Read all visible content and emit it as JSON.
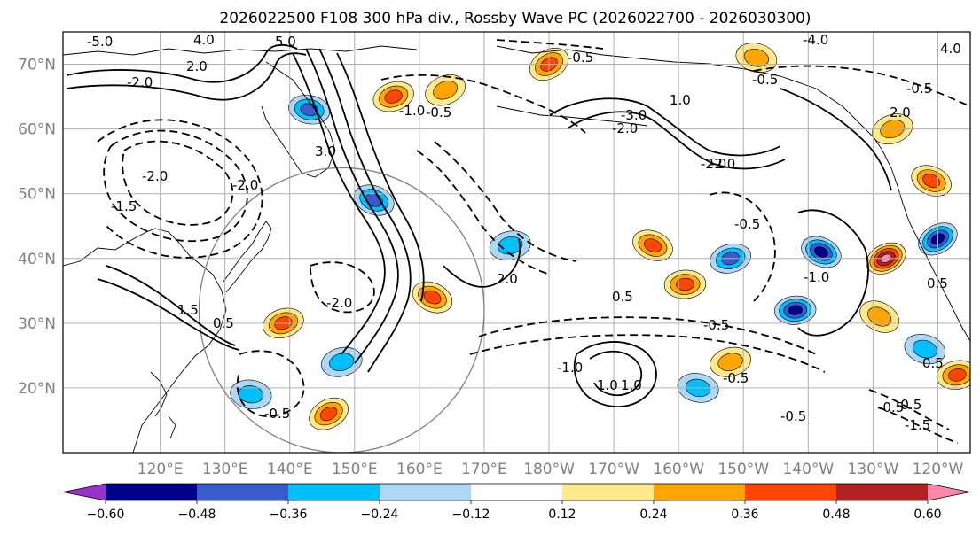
{
  "chart_data": {
    "type": "contour-map",
    "title": "2026022500 F108 300 hPa div., Rossby Wave PC (2026022700 - 2026030300)",
    "projection": "cylindrical",
    "lon_range": [
      105,
      245
    ],
    "lat_range": [
      10,
      75
    ],
    "lat_ticks": [
      {
        "lat": 20,
        "label": "20°N"
      },
      {
        "lat": 30,
        "label": "30°N"
      },
      {
        "lat": 40,
        "label": "40°N"
      },
      {
        "lat": 50,
        "label": "50°N"
      },
      {
        "lat": 60,
        "label": "60°N"
      },
      {
        "lat": 70,
        "label": "70°N"
      }
    ],
    "lon_ticks": [
      {
        "lon": 120,
        "label": "120°E"
      },
      {
        "lon": 130,
        "label": "130°E"
      },
      {
        "lon": 140,
        "label": "140°E"
      },
      {
        "lon": 150,
        "label": "150°E"
      },
      {
        "lon": 160,
        "label": "160°E"
      },
      {
        "lon": 170,
        "label": "170°E"
      },
      {
        "lon": 180,
        "label": "180°W"
      },
      {
        "lon": 190,
        "label": "170°W"
      },
      {
        "lon": 200,
        "label": "160°W"
      },
      {
        "lon": 210,
        "label": "150°W"
      },
      {
        "lon": 220,
        "label": "140°W"
      },
      {
        "lon": 230,
        "label": "130°W"
      },
      {
        "lon": 240,
        "label": "120°W"
      }
    ],
    "colorbar": {
      "boundaries": [
        -0.72,
        -0.6,
        -0.48,
        -0.36,
        -0.24,
        -0.12,
        0.12,
        0.24,
        0.36,
        0.48,
        0.6,
        0.72
      ],
      "tick_values": [
        -0.6,
        -0.48,
        -0.36,
        -0.24,
        -0.12,
        0.12,
        0.24,
        0.36,
        0.48,
        0.6
      ],
      "tick_labels": [
        "−0.60",
        "−0.48",
        "−0.36",
        "−0.24",
        "−0.12",
        "0.12",
        "0.24",
        "0.36",
        "0.48",
        "0.60"
      ],
      "colors": [
        "#9932cc",
        "#00008b",
        "#3a5bcb",
        "#00bfff",
        "#add8f5",
        "#ffffff",
        "#ffe98a",
        "#ffa500",
        "#ff4500",
        "#b22222",
        "#ff88aa"
      ],
      "extend": "both"
    },
    "shaded_field": "300 hPa divergence",
    "divergence_features": [
      {
        "lon": 143,
        "lat": 63,
        "value": -0.4
      },
      {
        "lon": 156,
        "lat": 65,
        "value": 0.36
      },
      {
        "lon": 164,
        "lat": 66,
        "value": 0.3
      },
      {
        "lon": 180,
        "lat": 70,
        "value": 0.38
      },
      {
        "lon": 212,
        "lat": 71,
        "value": 0.3
      },
      {
        "lon": 233,
        "lat": 60,
        "value": 0.32
      },
      {
        "lon": 239,
        "lat": 52,
        "value": 0.42
      },
      {
        "lon": 232,
        "lat": 40,
        "value": 0.66
      },
      {
        "lon": 222,
        "lat": 41,
        "value": -0.5
      },
      {
        "lon": 218,
        "lat": 32,
        "value": -0.55
      },
      {
        "lon": 240,
        "lat": 43,
        "value": -0.48
      },
      {
        "lon": 196,
        "lat": 42,
        "value": 0.4
      },
      {
        "lon": 201,
        "lat": 36,
        "value": 0.45
      },
      {
        "lon": 208,
        "lat": 40,
        "value": -0.36
      },
      {
        "lon": 174,
        "lat": 42,
        "value": -0.3
      },
      {
        "lon": 162,
        "lat": 34,
        "value": 0.46
      },
      {
        "lon": 139,
        "lat": 30,
        "value": 0.4
      },
      {
        "lon": 153,
        "lat": 49,
        "value": -0.36
      },
      {
        "lon": 148,
        "lat": 24,
        "value": -0.28
      },
      {
        "lon": 134,
        "lat": 19,
        "value": -0.3
      },
      {
        "lon": 146,
        "lat": 16,
        "value": 0.36
      },
      {
        "lon": 208,
        "lat": 24,
        "value": 0.3
      },
      {
        "lon": 203,
        "lat": 20,
        "value": -0.28
      },
      {
        "lon": 243,
        "lat": 22,
        "value": 0.38
      },
      {
        "lon": 238,
        "lat": 26,
        "value": -0.3
      },
      {
        "lon": 231,
        "lat": 31,
        "value": 0.3
      }
    ],
    "contour_field": "Rossby Wave PC",
    "contour_label_values": [
      "-5.0",
      "4.0",
      "5.0",
      "-2.0",
      "2.0",
      "-1.0",
      "3.0",
      "-0.5",
      "-4.0",
      "-2.0",
      "1.0",
      "-3.0",
      "-2.0",
      "-0.5",
      "-1.5",
      "0.5",
      "-2.0",
      "-0.5",
      "-0.5",
      "-1.0",
      "0.5",
      "1.0",
      "-0.5",
      "-0.5",
      "-2.0",
      "1.5",
      "-0.5",
      "2.0",
      "-0.5",
      "-1.0",
      "0.5",
      "1.0",
      "-0.5",
      "-0.5",
      "0.5",
      "-0.5",
      "-1.5",
      "4.0",
      "-2.0",
      "-2.0",
      "2.0"
    ],
    "range_ring": {
      "center_lon": 148,
      "center_lat": 32,
      "radius_deg": 22
    }
  }
}
